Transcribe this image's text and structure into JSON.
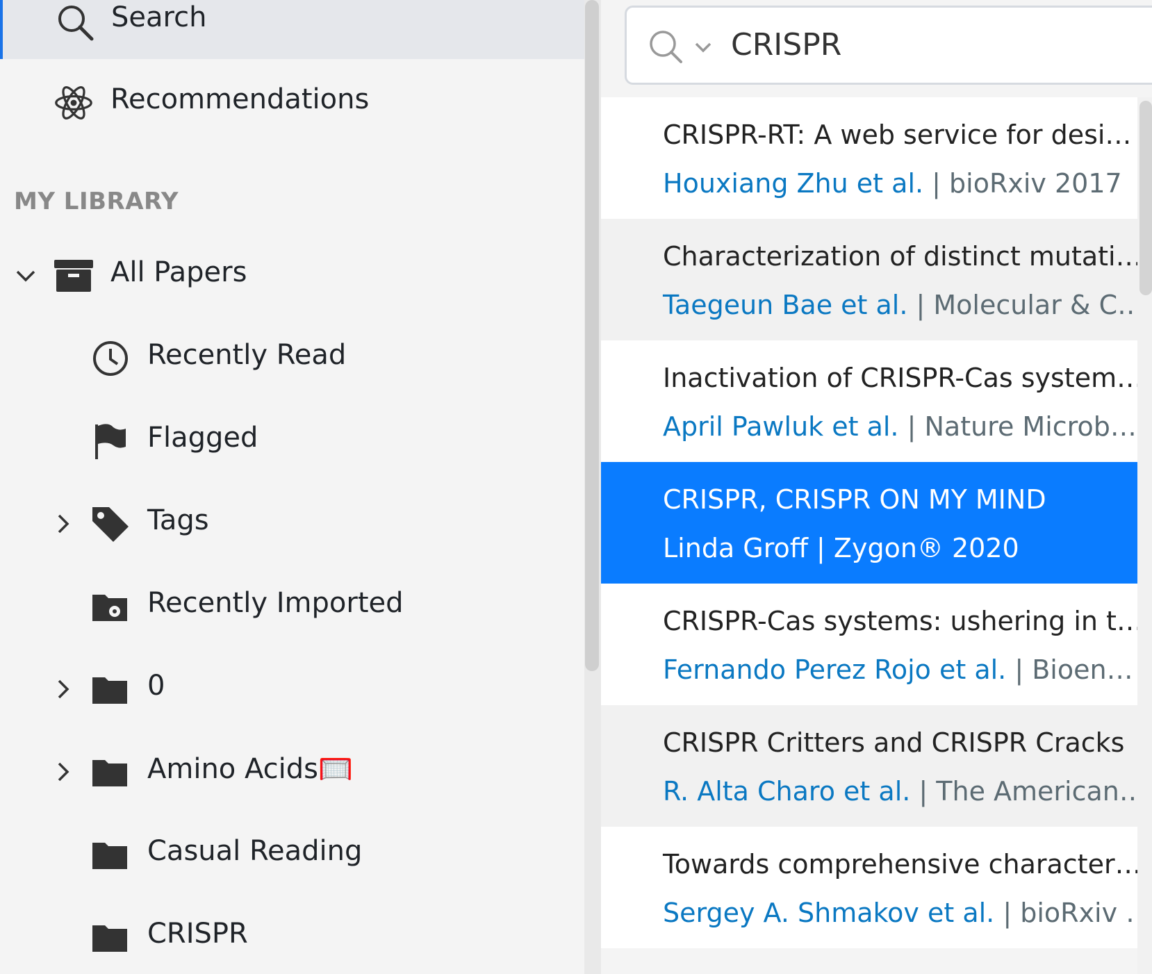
{
  "sidebar": {
    "search": "Search",
    "recommendations": "Recommendations",
    "library_heading": "MY LIBRARY",
    "items": [
      {
        "label": "All Papers",
        "icon": "archive-box-icon",
        "expand": "expanded"
      },
      {
        "label": "Recently Read",
        "icon": "clock-icon"
      },
      {
        "label": "Flagged",
        "icon": "flag-icon"
      },
      {
        "label": "Tags",
        "icon": "tag-icon",
        "expand": "collapsed"
      },
      {
        "label": "Recently Imported",
        "icon": "folder-gear-icon"
      },
      {
        "label": "0",
        "icon": "folder-icon",
        "expand": "collapsed"
      },
      {
        "label": "Amino Acids",
        "emoji": "🥅",
        "icon": "folder-icon",
        "expand": "collapsed"
      },
      {
        "label": "Casual Reading",
        "icon": "folder-icon"
      },
      {
        "label": "CRISPR",
        "icon": "folder-icon"
      }
    ]
  },
  "search": {
    "query": "CRISPR"
  },
  "results": [
    {
      "title": "CRISPR-RT: A web service for desi…",
      "authors": "Houxiang Zhu et al.",
      "source": " | bioRxiv 2017"
    },
    {
      "title": "Characterization of distinct mutati…",
      "authors": "Taegeun Bae et al.",
      "source": " | Molecular & C…"
    },
    {
      "title": "Inactivation of CRISPR-Cas system…",
      "authors": "April Pawluk et al.",
      "source": " | Nature Microb…"
    },
    {
      "title": "CRISPR, CRISPR ON MY MIND",
      "authors": "Linda Groff",
      "source": " | Zygon® 2020",
      "selected": true
    },
    {
      "title": "CRISPR-Cas systems: ushering in t…",
      "authors": "Fernando Perez Rojo et al.",
      "source": " | Bioen…"
    },
    {
      "title": "CRISPR Critters and CRISPR Cracks",
      "authors": "R. Alta Charo et al.",
      "source": " | The American…"
    },
    {
      "title": "Towards comprehensive character…",
      "authors": "Sergey A. Shmakov et al.",
      "source": " | bioRxiv …"
    }
  ],
  "colors": {
    "accent": "#0a7cff",
    "author": "#0a78c2"
  }
}
